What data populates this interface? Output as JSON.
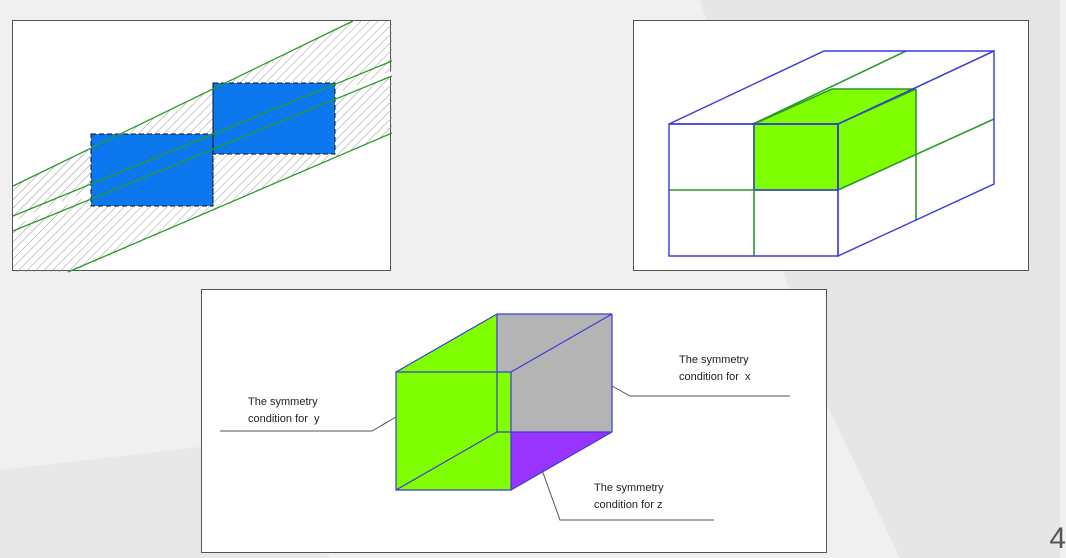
{
  "slide": {
    "page_number": "4",
    "colors": {
      "background": "#f0f0f0",
      "background_shade": "#e3e3e3",
      "blue_fill": "#0a78f0",
      "green_fill": "#7fff00",
      "gray_fill": "#b4b4b4",
      "violet_fill": "#9933ff",
      "edge_blue": "#3a3adc",
      "edge_green": "#2a9a2a"
    }
  },
  "bottom_diagram": {
    "callouts": {
      "x": {
        "line1": "The symmetry",
        "line2": "condition for  x"
      },
      "y": {
        "line1": "The symmetry",
        "line2": "condition for  y"
      },
      "z": {
        "line1": "The symmetry",
        "line2": "condition for z"
      }
    }
  }
}
